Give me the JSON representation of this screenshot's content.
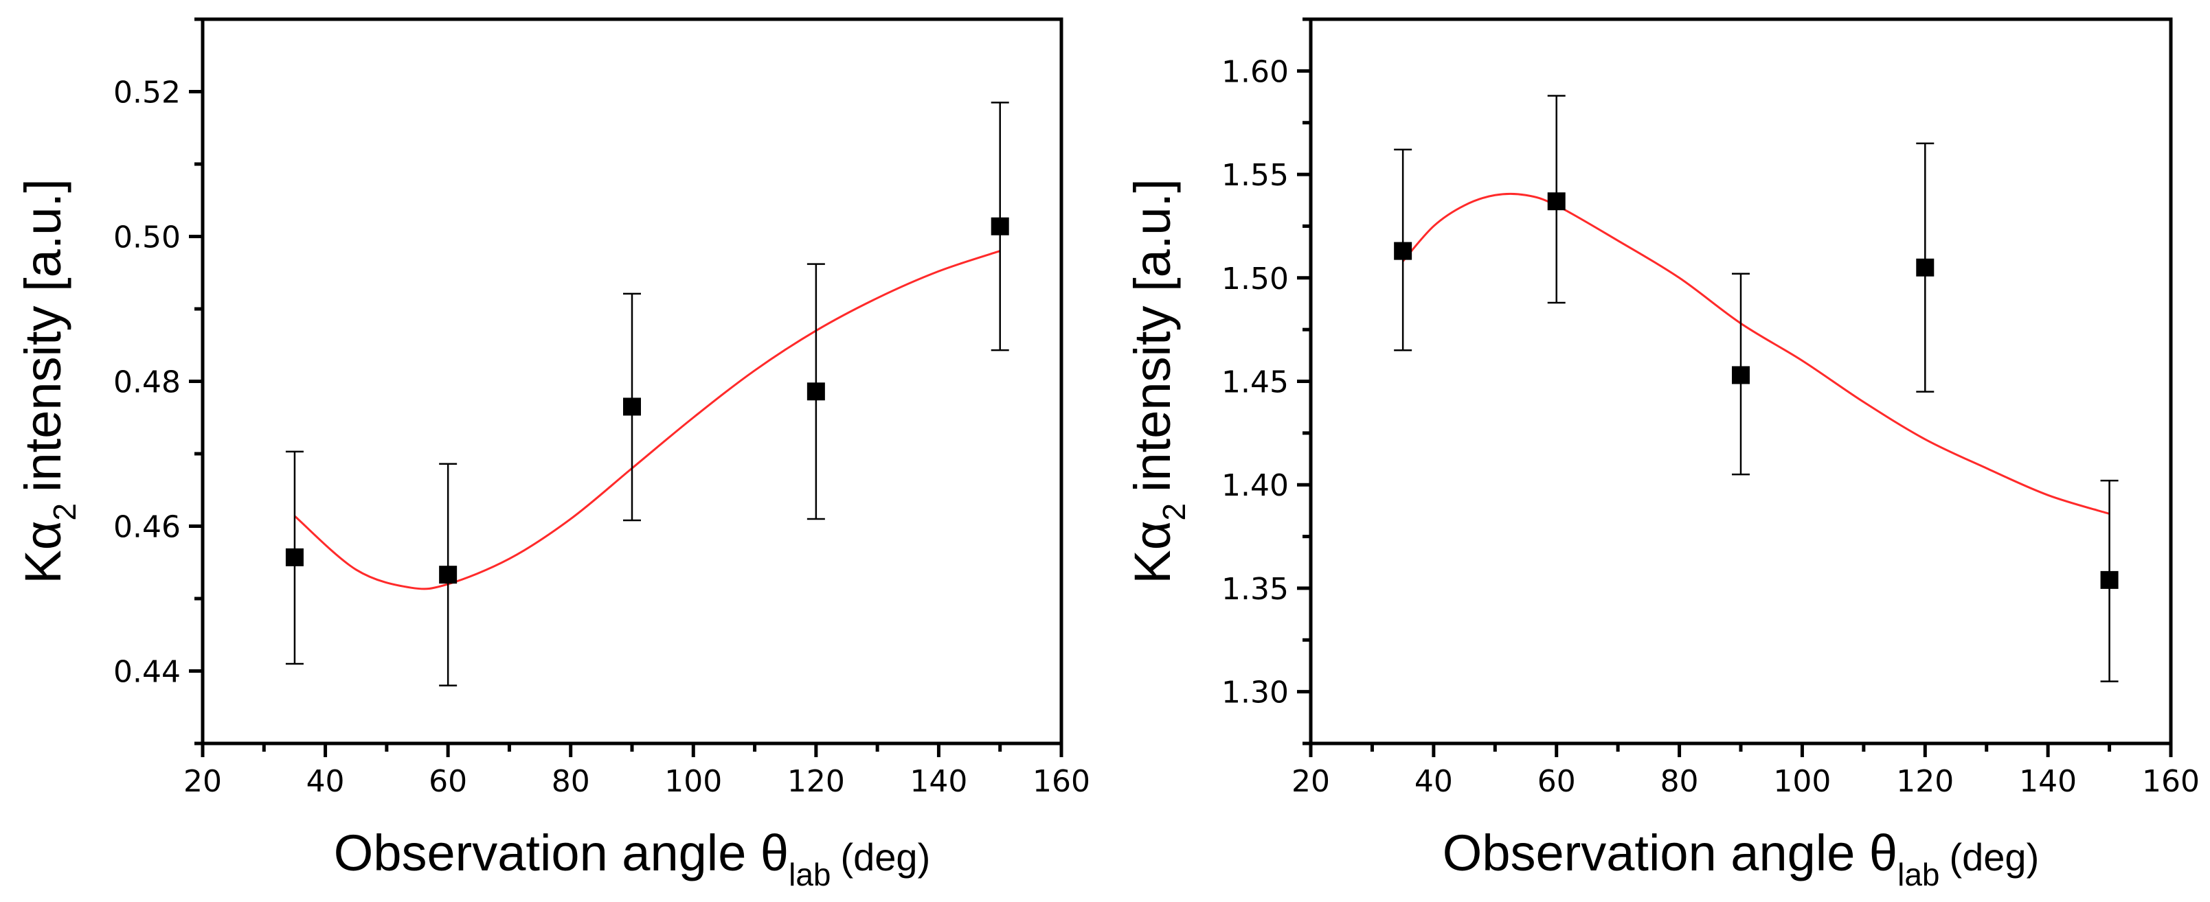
{
  "chart_data": [
    {
      "type": "scatter",
      "title": "",
      "xlabel": {
        "main": "Observation angle θ",
        "sub": "lab",
        "unit": "(deg)"
      },
      "ylabel": {
        "main": "Kα",
        "sub": "2",
        "unit": "intensity [a.u.]"
      },
      "xlim": [
        20,
        160
      ],
      "ylim": [
        0.43,
        0.53
      ],
      "x_ticks": [
        20,
        40,
        60,
        80,
        100,
        120,
        140,
        160
      ],
      "x_tick_labels": [
        "20",
        "40",
        "60",
        "80",
        "100",
        "120",
        "140",
        "160"
      ],
      "y_ticks": [
        0.44,
        0.46,
        0.48,
        0.5,
        0.52
      ],
      "y_tick_labels": [
        "0.44",
        "0.46",
        "0.48",
        "0.50",
        "0.52"
      ],
      "points": {
        "x": [
          35,
          60,
          90,
          120,
          150
        ],
        "y": [
          0.4557,
          0.4533,
          0.4765,
          0.4786,
          0.5014
        ],
        "err_low": [
          0.441,
          0.438,
          0.4608,
          0.461,
          0.4843
        ],
        "err_high": [
          0.4703,
          0.4686,
          0.4921,
          0.4962,
          0.5185
        ]
      },
      "fit_curve": {
        "color": "#ff2a2a",
        "x": [
          35,
          45,
          54,
          60,
          70,
          80,
          90,
          100,
          110,
          120,
          130,
          140,
          150
        ],
        "y": [
          0.4614,
          0.454,
          0.4515,
          0.452,
          0.4555,
          0.461,
          0.468,
          0.475,
          0.4815,
          0.487,
          0.4915,
          0.4952,
          0.498
        ]
      },
      "marker_color": "#000000"
    },
    {
      "type": "scatter",
      "title": "",
      "xlabel": {
        "main": "Observation angle θ",
        "sub": "lab",
        "unit": "(deg)"
      },
      "ylabel": {
        "main": "Kα",
        "sub": "2",
        "unit": "intensity [a.u.]"
      },
      "xlim": [
        20,
        160
      ],
      "ylim": [
        1.275,
        1.625
      ],
      "x_ticks": [
        20,
        40,
        60,
        80,
        100,
        120,
        140,
        160
      ],
      "x_tick_labels": [
        "20",
        "40",
        "60",
        "80",
        "100",
        "120",
        "140",
        "160"
      ],
      "y_ticks": [
        1.3,
        1.35,
        1.4,
        1.45,
        1.5,
        1.55,
        1.6
      ],
      "y_tick_labels": [
        "1.30",
        "1.35",
        "1.40",
        "1.45",
        "1.50",
        "1.55",
        "1.60"
      ],
      "points": {
        "x": [
          35,
          60,
          90,
          120,
          150
        ],
        "y": [
          1.513,
          1.537,
          1.453,
          1.505,
          1.354
        ],
        "err_low": [
          1.465,
          1.488,
          1.405,
          1.445,
          1.305
        ],
        "err_high": [
          1.562,
          1.588,
          1.502,
          1.565,
          1.402
        ]
      },
      "fit_curve": {
        "color": "#ff2a2a",
        "x": [
          35,
          40,
          45,
          50,
          55,
          60,
          70,
          80,
          90,
          100,
          110,
          120,
          130,
          140,
          150
        ],
        "y": [
          1.508,
          1.525,
          1.535,
          1.54,
          1.54,
          1.535,
          1.518,
          1.5,
          1.478,
          1.46,
          1.44,
          1.422,
          1.408,
          1.395,
          1.386
        ]
      },
      "marker_color": "#000000"
    }
  ]
}
